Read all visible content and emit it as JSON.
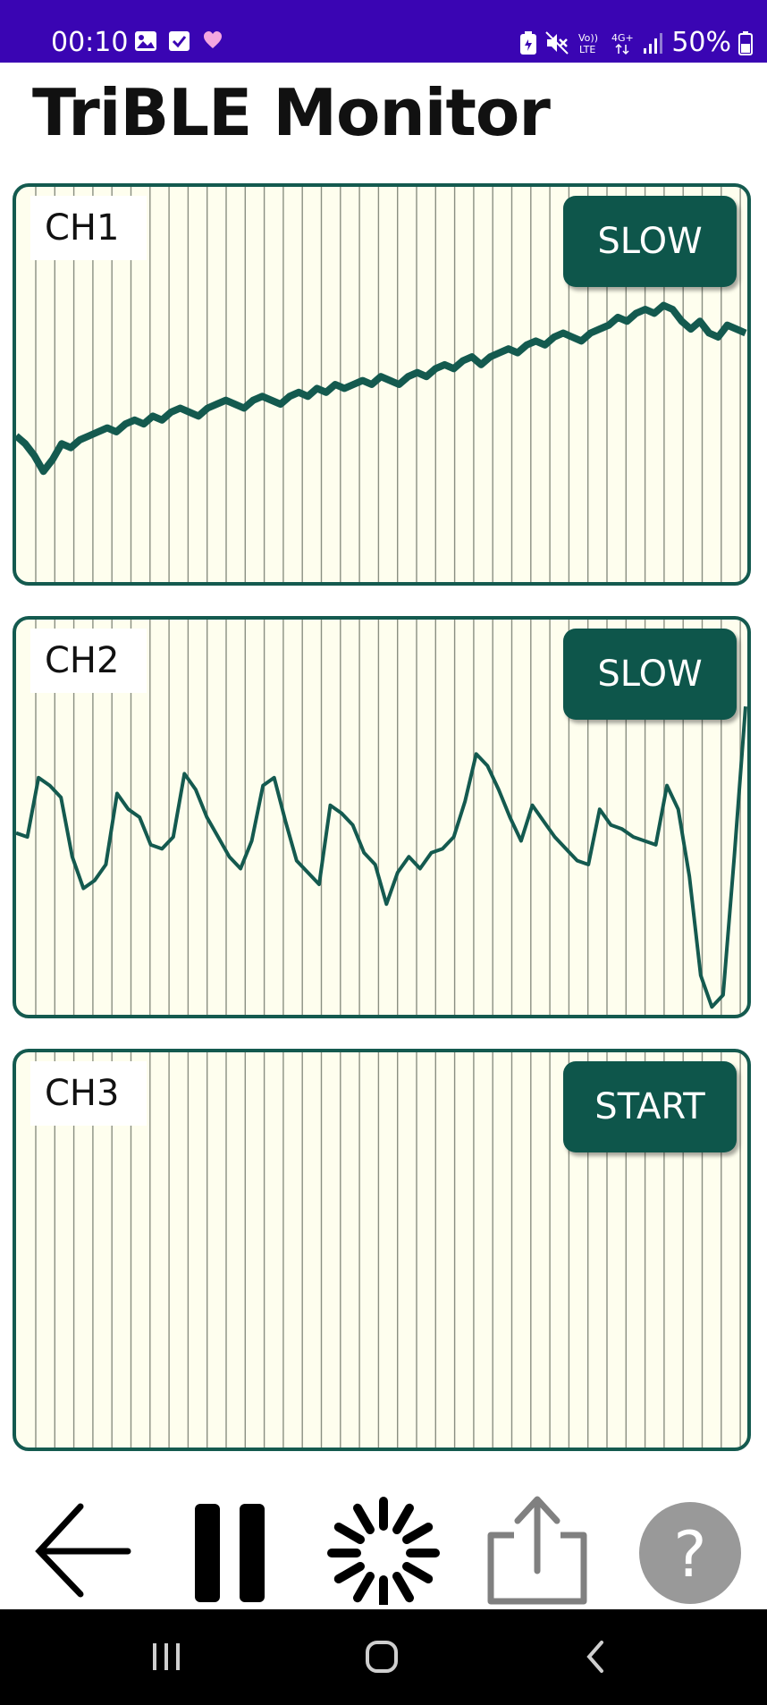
{
  "status_bar": {
    "time": "00:10",
    "battery": "50%",
    "background": "#3A05B3",
    "notification_icons": [
      "image-icon",
      "checkbox-icon",
      "heart-icon"
    ],
    "system_icons": [
      "battery-saver-icon",
      "mute-icon",
      "volte-icon",
      "4g-icon",
      "signal-icon",
      "battery-icon"
    ],
    "volte_label": "Vo))\nLTE",
    "network_label": "4G+"
  },
  "app": {
    "title": "TriBLE Monitor"
  },
  "colors": {
    "accent": "#0E564B",
    "trace": "#145A4F",
    "panel_background": "#FEFEEE",
    "grid_line": "#8A8F82"
  },
  "channels": [
    {
      "label": "CH1",
      "button_label": "SLOW",
      "chart_data": {
        "type": "line",
        "trace": [
          0.37,
          0.35,
          0.32,
          0.28,
          0.31,
          0.35,
          0.34,
          0.36,
          0.37,
          0.38,
          0.39,
          0.38,
          0.4,
          0.41,
          0.4,
          0.42,
          0.41,
          0.43,
          0.44,
          0.43,
          0.42,
          0.44,
          0.45,
          0.46,
          0.45,
          0.44,
          0.46,
          0.47,
          0.46,
          0.45,
          0.47,
          0.48,
          0.47,
          0.49,
          0.48,
          0.5,
          0.49,
          0.5,
          0.51,
          0.5,
          0.52,
          0.51,
          0.5,
          0.52,
          0.53,
          0.52,
          0.54,
          0.55,
          0.54,
          0.56,
          0.57,
          0.55,
          0.57,
          0.58,
          0.59,
          0.58,
          0.6,
          0.61,
          0.6,
          0.62,
          0.63,
          0.62,
          0.61,
          0.63,
          0.64,
          0.65,
          0.67,
          0.66,
          0.68,
          0.69,
          0.68,
          0.7,
          0.69,
          0.66,
          0.64,
          0.66,
          0.63,
          0.62,
          0.65,
          0.64,
          0.63
        ]
      }
    },
    {
      "label": "CH2",
      "button_label": "SLOW",
      "chart_data": {
        "type": "line",
        "trace": [
          0.46,
          0.45,
          0.6,
          0.58,
          0.55,
          0.4,
          0.32,
          0.34,
          0.38,
          0.56,
          0.52,
          0.5,
          0.43,
          0.42,
          0.45,
          0.61,
          0.57,
          0.5,
          0.45,
          0.4,
          0.37,
          0.44,
          0.58,
          0.6,
          0.49,
          0.39,
          0.36,
          0.33,
          0.53,
          0.51,
          0.48,
          0.41,
          0.38,
          0.28,
          0.36,
          0.4,
          0.37,
          0.41,
          0.42,
          0.45,
          0.54,
          0.66,
          0.63,
          0.57,
          0.5,
          0.44,
          0.53,
          0.49,
          0.45,
          0.42,
          0.39,
          0.38,
          0.52,
          0.48,
          0.47,
          0.45,
          0.44,
          0.43,
          0.58,
          0.52,
          0.35,
          0.1,
          0.02,
          0.05,
          0.4,
          0.78
        ]
      }
    },
    {
      "label": "CH3",
      "button_label": "START",
      "chart_data": {
        "type": "line",
        "trace": []
      }
    }
  ],
  "toolbar": {
    "items": [
      "back-arrow-icon",
      "pause-icon",
      "loading-spinner-icon",
      "share-icon",
      "help-icon"
    ],
    "help_label": "?"
  },
  "nav_bar": {
    "items": [
      "recent-apps-icon",
      "home-icon",
      "back-icon"
    ]
  }
}
